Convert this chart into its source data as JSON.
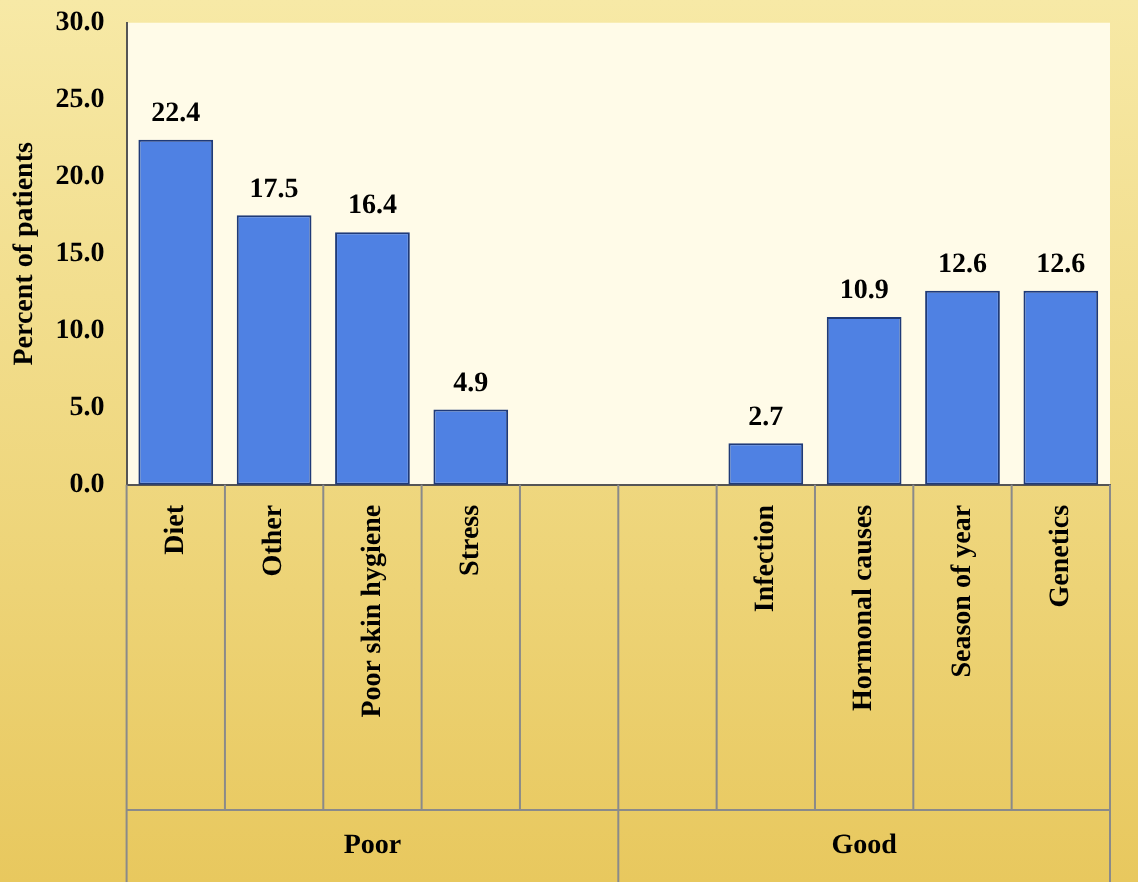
{
  "chart_data": {
    "type": "bar",
    "ylabel": "Percent of patients",
    "categories": [
      "Diet",
      "Other",
      "Poor skin hygiene",
      "Stress",
      null,
      null,
      "Infection",
      "Hormonal causes",
      "Season of year",
      "Genetics"
    ],
    "values": [
      22.4,
      17.5,
      16.4,
      4.9,
      null,
      null,
      2.7,
      10.9,
      12.6,
      12.6
    ],
    "color": "#4f81e3",
    "ylim": [
      0,
      30
    ],
    "yticks": [
      {
        "value": 0,
        "label": "0.0"
      },
      {
        "value": 5,
        "label": "5.0"
      },
      {
        "value": 10,
        "label": "10.0"
      },
      {
        "value": 15,
        "label": "15.0"
      },
      {
        "value": 20,
        "label": "20.0"
      },
      {
        "value": 25,
        "label": "25.0"
      },
      {
        "value": 30,
        "label": "30.0"
      }
    ],
    "data_labels": true,
    "grid": false,
    "legend": false,
    "annotations": [
      "Poor",
      "Good"
    ]
  }
}
